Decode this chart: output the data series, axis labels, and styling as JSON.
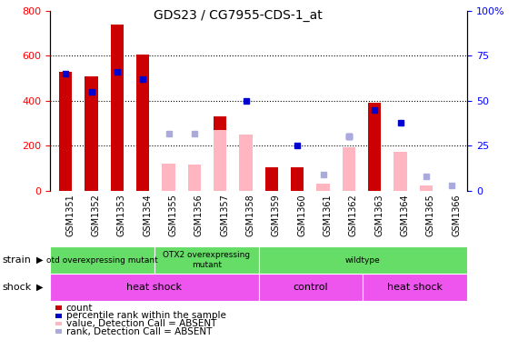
{
  "title": "GDS23 / CG7955-CDS-1_at",
  "samples": [
    "GSM1351",
    "GSM1352",
    "GSM1353",
    "GSM1354",
    "GSM1355",
    "GSM1356",
    "GSM1357",
    "GSM1358",
    "GSM1359",
    "GSM1360",
    "GSM1361",
    "GSM1362",
    "GSM1363",
    "GSM1364",
    "GSM1365",
    "GSM1366"
  ],
  "count_values": [
    530,
    510,
    740,
    605,
    0,
    0,
    330,
    0,
    105,
    105,
    25,
    0,
    390,
    170,
    0,
    0
  ],
  "rank_values": [
    65,
    55,
    66,
    62,
    0,
    0,
    0,
    50,
    0,
    25,
    0,
    30,
    45,
    38,
    0,
    0
  ],
  "absent_val_values": [
    0,
    0,
    0,
    0,
    120,
    115,
    270,
    250,
    0,
    0,
    30,
    195,
    0,
    175,
    25,
    0
  ],
  "absent_rank_values": [
    0,
    0,
    0,
    0,
    32,
    32,
    0,
    0,
    0,
    0,
    9,
    30,
    0,
    0,
    8,
    3
  ],
  "ylim_left": [
    0,
    800
  ],
  "ylim_right": [
    0,
    100
  ],
  "yticks_left": [
    0,
    200,
    400,
    600,
    800
  ],
  "yticks_right": [
    0,
    25,
    50,
    75,
    100
  ],
  "count_color": "#CC0000",
  "rank_color": "#0000CC",
  "absent_val_color": "#FFB6C1",
  "absent_rank_color": "#AAAADD",
  "strain_groups": [
    {
      "start": 0,
      "end": 4,
      "label": "otd overexpressing mutant",
      "color": "#66DD66"
    },
    {
      "start": 4,
      "end": 8,
      "label": "OTX2 overexpressing\nmutant",
      "color": "#66DD66"
    },
    {
      "start": 8,
      "end": 16,
      "label": "wildtype",
      "color": "#66DD66"
    }
  ],
  "shock_groups": [
    {
      "start": 0,
      "end": 8,
      "label": "heat shock",
      "color": "#EE55EE"
    },
    {
      "start": 8,
      "end": 12,
      "label": "control",
      "color": "#EE55EE"
    },
    {
      "start": 12,
      "end": 16,
      "label": "heat shock",
      "color": "#EE55EE"
    }
  ],
  "legend_items": [
    {
      "color": "#CC0000",
      "label": "count"
    },
    {
      "color": "#0000CC",
      "label": "percentile rank within the sample"
    },
    {
      "color": "#FFB6C1",
      "label": "value, Detection Call = ABSENT"
    },
    {
      "color": "#AAAADD",
      "label": "rank, Detection Call = ABSENT"
    }
  ],
  "fig_width": 5.81,
  "fig_height": 3.96,
  "dpi": 100
}
